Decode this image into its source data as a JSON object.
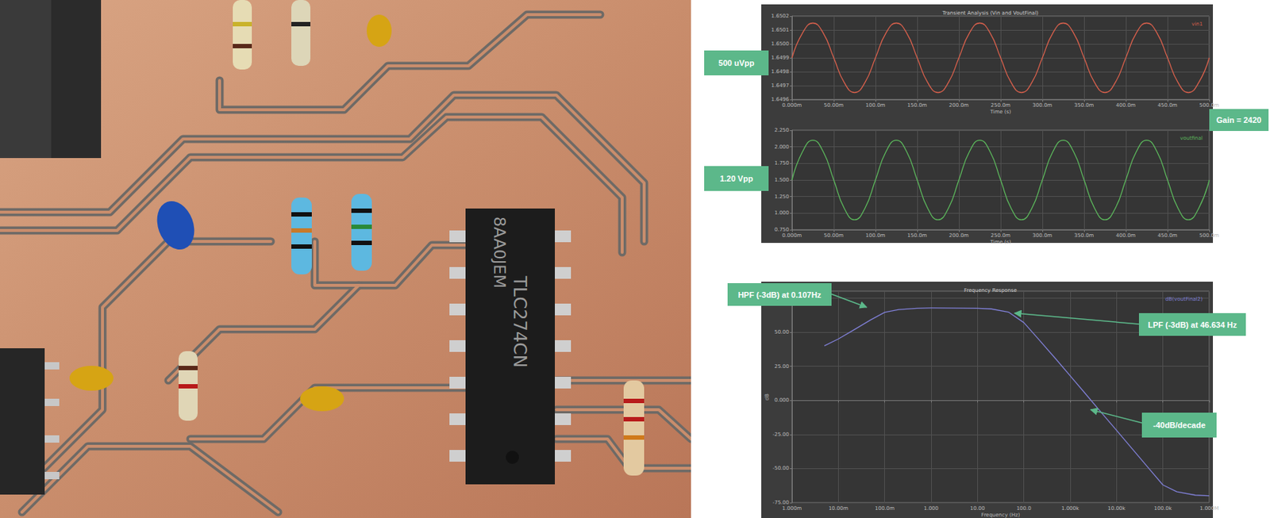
{
  "photo": {
    "chip_text": [
      "8AA0JEM",
      "TLC274CN"
    ]
  },
  "chart_data": [
    {
      "type": "line",
      "title": "Transient Analysis (Vin and VoutFinal)",
      "x_label": "Time (s)",
      "x": [
        0,
        0.0125,
        0.025,
        0.0375,
        0.05,
        0.0625,
        0.075,
        0.0875,
        0.1,
        0.1125,
        0.125,
        0.1375,
        0.15,
        0.1625,
        0.175,
        0.1875,
        0.2,
        0.2125,
        0.225,
        0.2375,
        0.25,
        0.2625,
        0.275,
        0.2875,
        0.3,
        0.3125,
        0.325,
        0.3375,
        0.35,
        0.3625,
        0.375,
        0.3875,
        0.4,
        0.4125,
        0.425,
        0.4375,
        0.45,
        0.4625,
        0.475,
        0.4875,
        0.5
      ],
      "series": [
        {
          "name": "vin1",
          "color": "#d9604c",
          "values": [
            1.6499,
            1.650077,
            1.65015,
            1.650077,
            1.6499,
            1.649723,
            1.64965,
            1.649723,
            1.6499,
            1.650077,
            1.65015,
            1.650077,
            1.6499,
            1.649723,
            1.64965,
            1.649723,
            1.6499,
            1.650077,
            1.65015,
            1.650077,
            1.6499,
            1.649723,
            1.64965,
            1.649723,
            1.6499,
            1.650077,
            1.65015,
            1.650077,
            1.6499,
            1.649723,
            1.64965,
            1.649723,
            1.6499,
            1.650077,
            1.65015,
            1.650077,
            1.6499,
            1.649723,
            1.64965,
            1.649723,
            1.6499
          ]
        }
      ],
      "xlim": [
        0,
        0.5
      ],
      "xticks": [
        {
          "value": 0,
          "label": "0.000m"
        },
        {
          "value": 0.05,
          "label": "50.00m"
        },
        {
          "value": 0.1,
          "label": "100.0m"
        },
        {
          "value": 0.15,
          "label": "150.0m"
        },
        {
          "value": 0.2,
          "label": "200.0m"
        },
        {
          "value": 0.25,
          "label": "250.0m"
        },
        {
          "value": 0.3,
          "label": "300.0m"
        },
        {
          "value": 0.35,
          "label": "350.0m"
        },
        {
          "value": 0.4,
          "label": "400.0m"
        },
        {
          "value": 0.45,
          "label": "450.0m"
        },
        {
          "value": 0.5,
          "label": "500.0m"
        }
      ],
      "ylim": [
        1.6496,
        1.6502
      ],
      "yticks": [
        1.6496,
        1.6497,
        1.6498,
        1.6499,
        {
          "value": 1.65,
          "label": "1.6500"
        },
        1.6501,
        1.6502
      ],
      "grid": true,
      "annotations": [
        "500 uVpp"
      ]
    },
    {
      "type": "line",
      "x_label": "Time (s)",
      "x": [
        0,
        0.0125,
        0.025,
        0.0375,
        0.05,
        0.0625,
        0.075,
        0.0875,
        0.1,
        0.1125,
        0.125,
        0.1375,
        0.15,
        0.1625,
        0.175,
        0.1875,
        0.2,
        0.2125,
        0.225,
        0.2375,
        0.25,
        0.2625,
        0.275,
        0.2875,
        0.3,
        0.3125,
        0.325,
        0.3375,
        0.35,
        0.3625,
        0.375,
        0.3875,
        0.4,
        0.4125,
        0.425,
        0.4375,
        0.45,
        0.4625,
        0.475,
        0.4875,
        0.5
      ],
      "series": [
        {
          "name": "voutfinal",
          "color": "#5cb85c",
          "values": [
            1.5,
            1.924,
            2.1,
            1.924,
            1.5,
            1.076,
            0.9,
            1.076,
            1.5,
            1.924,
            2.1,
            1.924,
            1.5,
            1.076,
            0.9,
            1.076,
            1.5,
            1.924,
            2.1,
            1.924,
            1.5,
            1.076,
            0.9,
            1.076,
            1.5,
            1.924,
            2.1,
            1.924,
            1.5,
            1.076,
            0.9,
            1.076,
            1.5,
            1.924,
            2.1,
            1.924,
            1.5,
            1.076,
            0.9,
            1.076,
            1.5
          ]
        }
      ],
      "xlim": [
        0,
        0.5
      ],
      "xticks": [
        {
          "value": 0,
          "label": "0.000m"
        },
        {
          "value": 0.05,
          "label": "50.00m"
        },
        {
          "value": 0.1,
          "label": "100.0m"
        },
        {
          "value": 0.15,
          "label": "150.0m"
        },
        {
          "value": 0.2,
          "label": "200.0m"
        },
        {
          "value": 0.25,
          "label": "250.0m"
        },
        {
          "value": 0.3,
          "label": "300.0m"
        },
        {
          "value": 0.35,
          "label": "350.0m"
        },
        {
          "value": 0.4,
          "label": "400.0m"
        },
        {
          "value": 0.45,
          "label": "450.0m"
        },
        {
          "value": 0.5,
          "label": "500.0m"
        }
      ],
      "ylim": [
        0.75,
        2.25
      ],
      "yticks": [
        {
          "value": 0.75,
          "label": "0.750"
        },
        {
          "value": 1,
          "label": "1.000"
        },
        {
          "value": 1.25,
          "label": "1.250"
        },
        {
          "value": 1.5,
          "label": "1.500"
        },
        {
          "value": 1.75,
          "label": "1.750"
        },
        {
          "value": 2,
          "label": "2.000"
        },
        {
          "value": 2.25,
          "label": "2.250"
        }
      ],
      "grid": true,
      "annotations": [
        "1.20 Vpp",
        "Gain = 2420"
      ]
    },
    {
      "type": "line",
      "title": "Frequency Response",
      "x_label": "Frequency (Hz)",
      "y_label": "dB",
      "log": "x",
      "x": [
        0.005,
        0.01,
        0.02,
        0.05,
        0.1,
        0.2,
        0.5,
        1,
        10,
        20,
        46.634,
        100,
        200,
        500,
        1000,
        2000,
        5000,
        10000,
        20000,
        50000,
        100000,
        200000,
        500000,
        1000000
      ],
      "series": [
        {
          "name": "dB(voutFinal2)",
          "color": "#7f7fd5",
          "values": [
            40,
            45,
            51,
            59,
            64.5,
            66.5,
            67.5,
            67.7,
            67.5,
            67,
            64.7,
            57,
            45.5,
            30,
            18,
            6,
            -10,
            -22,
            -34,
            -50,
            -62,
            -67,
            -69.5,
            -70
          ]
        }
      ],
      "xlim": [
        0.001,
        1000000
      ],
      "xticks": [
        {
          "value": 0.001,
          "label": "1.000m"
        },
        {
          "value": 0.01,
          "label": "10.00m"
        },
        {
          "value": 0.1,
          "label": "100.0m"
        },
        {
          "value": 1,
          "label": "1.000"
        },
        {
          "value": 10,
          "label": "10.00"
        },
        {
          "value": 100,
          "label": "100.0"
        },
        {
          "value": 1000,
          "label": "1.000k"
        },
        {
          "value": 10000,
          "label": "10.00k"
        },
        {
          "value": 100000,
          "label": "100.0k"
        },
        {
          "value": 1000000,
          "label": "1.000M"
        }
      ],
      "ylim": [
        -75,
        80
      ],
      "yticks": [
        {
          "value": -75,
          "label": "-75.00"
        },
        {
          "value": -50,
          "label": "-50.00"
        },
        {
          "value": -25,
          "label": "-25.00"
        },
        {
          "value": 0,
          "label": "0.000"
        },
        {
          "value": 25,
          "label": "25.00"
        },
        {
          "value": 50,
          "label": "50.00"
        }
      ],
      "grid": true,
      "annotations": [
        "HPF (-3dB) at 0.107Hz",
        "LPF (-3dB) at 46.634 Hz",
        "-40dB/decade"
      ]
    }
  ]
}
